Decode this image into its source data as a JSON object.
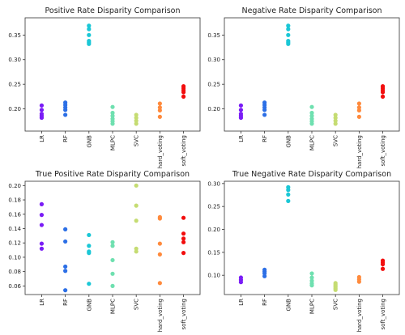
{
  "chart_data": [
    {
      "type": "scatter",
      "title": "Positive Rate Disparity Comparison",
      "categories": [
        "LR",
        "RF",
        "GNB",
        "MLPC",
        "SVC",
        "hard_voting",
        "soft_voting"
      ],
      "ylim": [
        0.155,
        0.385
      ],
      "yticks": [
        "0.20",
        "0.25",
        "0.30",
        "0.35"
      ],
      "grid": false,
      "series": [
        {
          "values": [
            0.207,
            0.198,
            0.19,
            0.186,
            0.182
          ]
        },
        {
          "values": [
            0.213,
            0.208,
            0.203,
            0.198,
            0.188
          ]
        },
        {
          "values": [
            0.369,
            0.362,
            0.35,
            0.338,
            0.335,
            0.332
          ]
        },
        {
          "values": [
            0.204,
            0.192,
            0.186,
            0.18,
            0.175,
            0.17
          ]
        },
        {
          "values": [
            0.188,
            0.182,
            0.176,
            0.17
          ]
        },
        {
          "values": [
            0.211,
            0.203,
            0.197,
            0.184
          ]
        },
        {
          "values": [
            0.246,
            0.242,
            0.238,
            0.234,
            0.225
          ]
        }
      ]
    },
    {
      "type": "scatter",
      "title": "Negative Rate Disparity Comparison",
      "categories": [
        "LR",
        "RF",
        "GNB",
        "MLPC",
        "SVC",
        "hard_voting",
        "soft_voting"
      ],
      "ylim": [
        0.155,
        0.385
      ],
      "yticks": [
        "0.20",
        "0.25",
        "0.30",
        "0.35"
      ],
      "grid": false,
      "series": [
        {
          "values": [
            0.207,
            0.198,
            0.19,
            0.186,
            0.182
          ]
        },
        {
          "values": [
            0.213,
            0.208,
            0.203,
            0.198,
            0.188
          ]
        },
        {
          "values": [
            0.369,
            0.362,
            0.35,
            0.338,
            0.335,
            0.332
          ]
        },
        {
          "values": [
            0.204,
            0.192,
            0.186,
            0.18,
            0.175,
            0.17
          ]
        },
        {
          "values": [
            0.188,
            0.182,
            0.176,
            0.17
          ]
        },
        {
          "values": [
            0.211,
            0.203,
            0.197,
            0.184
          ]
        },
        {
          "values": [
            0.246,
            0.242,
            0.238,
            0.234,
            0.225
          ]
        }
      ]
    },
    {
      "type": "scatter",
      "title": "True Positive Rate Disparity Comparison",
      "categories": [
        "LR",
        "RF",
        "GNB",
        "MLPC",
        "SVC",
        "hard_voting",
        "soft_voting"
      ],
      "ylim": [
        0.048,
        0.206
      ],
      "yticks": [
        "0.06",
        "0.08",
        "0.10",
        "0.12",
        "0.14",
        "0.16",
        "0.18",
        "0.20"
      ],
      "grid": false,
      "series": [
        {
          "values": [
            0.174,
            0.159,
            0.145,
            0.119,
            0.112
          ]
        },
        {
          "values": [
            0.139,
            0.122,
            0.087,
            0.081,
            0.054
          ]
        },
        {
          "values": [
            0.131,
            0.116,
            0.108,
            0.106,
            0.063
          ]
        },
        {
          "values": [
            0.121,
            0.116,
            0.096,
            0.077,
            0.06
          ]
        },
        {
          "values": [
            0.2,
            0.172,
            0.151,
            0.112,
            0.108
          ]
        },
        {
          "values": [
            0.156,
            0.154,
            0.119,
            0.104,
            0.064
          ]
        },
        {
          "values": [
            0.155,
            0.133,
            0.126,
            0.121,
            0.106
          ]
        }
      ]
    },
    {
      "type": "scatter",
      "title": "True Negative Rate Disparity Comparison",
      "categories": [
        "LR",
        "RF",
        "GNB",
        "MLPC",
        "SVC",
        "hard_voting",
        "soft_voting"
      ],
      "ylim": [
        0.058,
        0.305
      ],
      "yticks": [
        "0.10",
        "0.15",
        "0.20",
        "0.25",
        "0.30"
      ],
      "grid": false,
      "series": [
        {
          "values": [
            0.095,
            0.09,
            0.085
          ]
        },
        {
          "values": [
            0.112,
            0.108,
            0.104,
            0.098
          ]
        },
        {
          "values": [
            0.292,
            0.286,
            0.276,
            0.262
          ]
        },
        {
          "values": [
            0.104,
            0.095,
            0.088,
            0.082,
            0.078
          ]
        },
        {
          "values": [
            0.083,
            0.08,
            0.077,
            0.074,
            0.071,
            0.068
          ]
        },
        {
          "values": [
            0.096,
            0.091,
            0.086
          ]
        },
        {
          "values": [
            0.132,
            0.128,
            0.124,
            0.114
          ]
        }
      ]
    }
  ],
  "colors": [
    "#7a1cf6",
    "#2c6fe6",
    "#1ac7d6",
    "#6fe0b0",
    "#c5dc72",
    "#ff8a3c",
    "#f20e0e"
  ]
}
